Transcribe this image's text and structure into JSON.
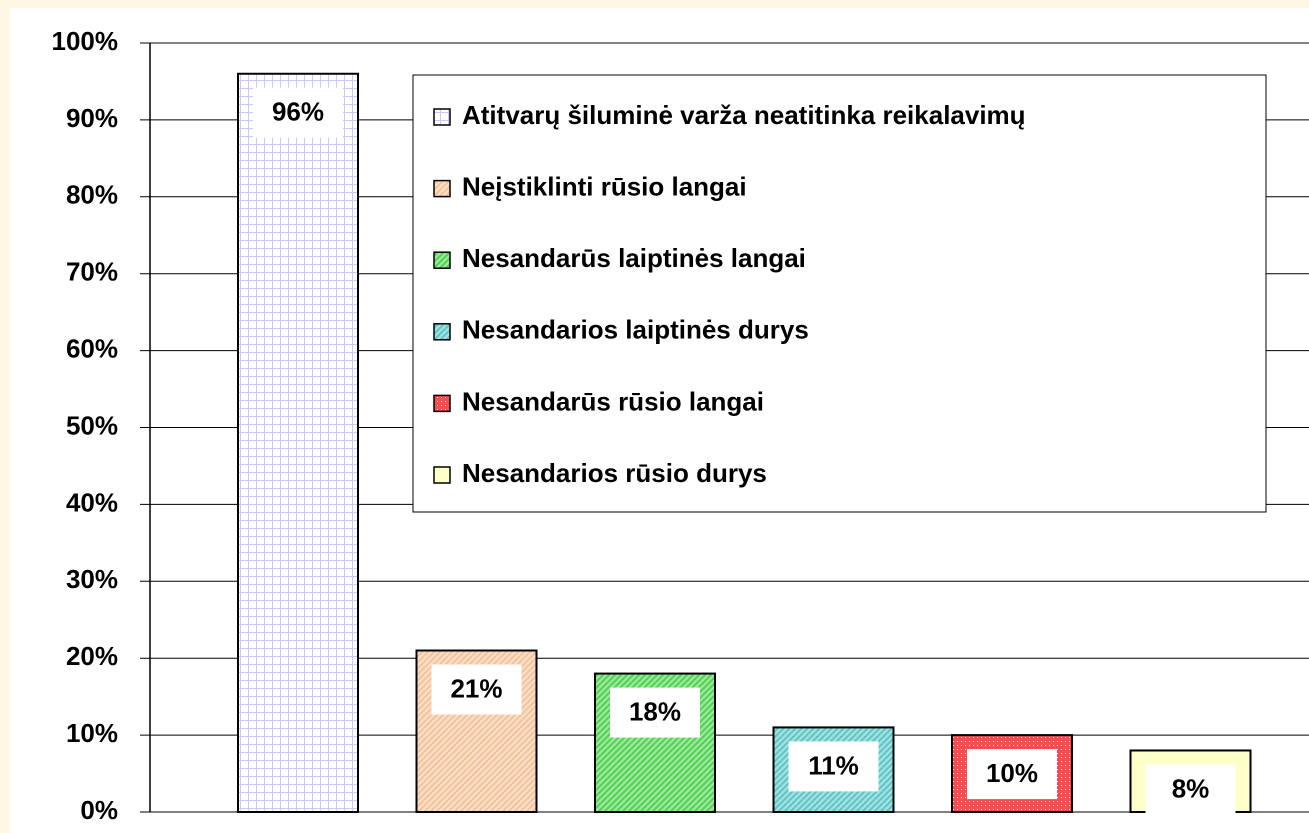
{
  "chart_data": {
    "type": "bar",
    "ylim": [
      0,
      100
    ],
    "yticks": [
      {
        "value": 0,
        "label": "0%"
      },
      {
        "value": 10,
        "label": "10%"
      },
      {
        "value": 20,
        "label": "20%"
      },
      {
        "value": 30,
        "label": "30%"
      },
      {
        "value": 40,
        "label": "40%"
      },
      {
        "value": 50,
        "label": "50%"
      },
      {
        "value": 60,
        "label": "60%"
      },
      {
        "value": 70,
        "label": "70%"
      },
      {
        "value": 80,
        "label": "80%"
      },
      {
        "value": 90,
        "label": "90%"
      },
      {
        "value": 100,
        "label": "100%"
      }
    ],
    "grid": true,
    "legend": "upper right",
    "series": [
      {
        "name": "Atitvarų šiluminė varža neatitinka reikalavimų",
        "color": "#c8c8ff",
        "pattern": "grid",
        "values": [
          96
        ],
        "value_labels": [
          "96%"
        ]
      },
      {
        "name": "Neįstiklinti rūsio langai",
        "color": "#f5c39a",
        "pattern": "diagonal",
        "values": [
          21
        ],
        "value_labels": [
          "21%"
        ]
      },
      {
        "name": "Nesandarūs laiptinės langai",
        "color": "#4fd24f",
        "pattern": "diagonal",
        "values": [
          18
        ],
        "value_labels": [
          "18%"
        ]
      },
      {
        "name": "Nesandarios laiptinės durys",
        "color": "#5cc6c6",
        "pattern": "diagonal",
        "values": [
          11
        ],
        "value_labels": [
          "11%"
        ]
      },
      {
        "name": "Nesandarūs rūsio langai",
        "color": "#f05050",
        "pattern": "dots",
        "values": [
          10
        ],
        "value_labels": [
          "10%"
        ]
      },
      {
        "name": "Nesandarios rūsio durys",
        "color": "#ffffc8",
        "pattern": "solid",
        "values": [
          8
        ],
        "value_labels": [
          "8%"
        ]
      }
    ]
  }
}
